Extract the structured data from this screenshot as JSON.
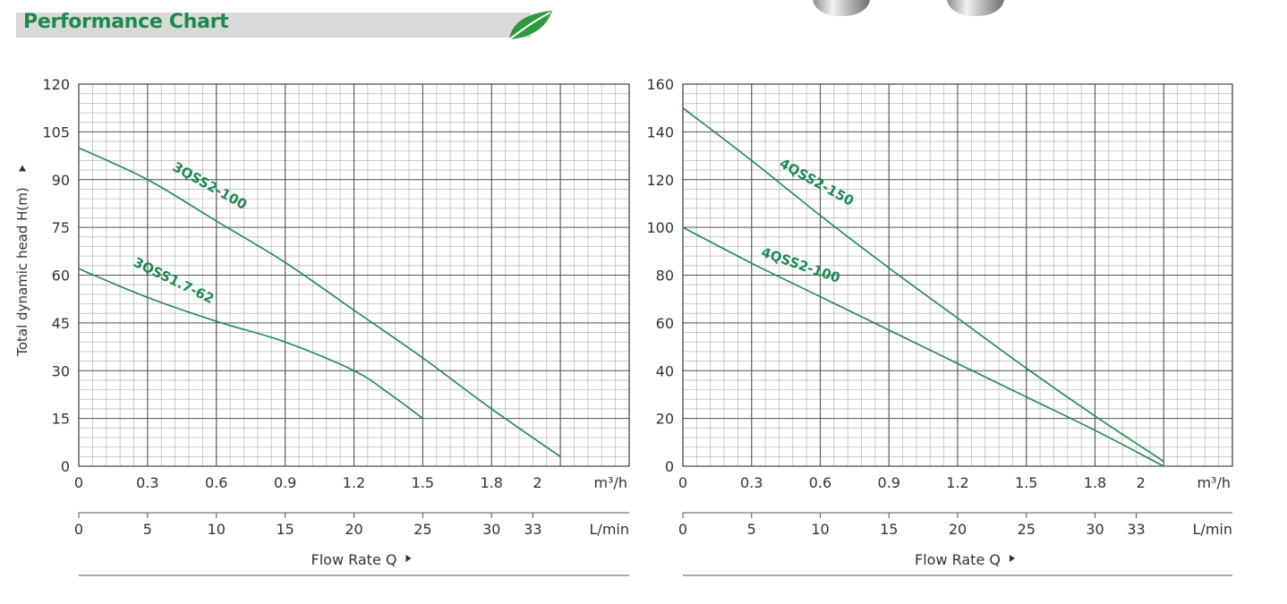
{
  "header": {
    "title": "Performance Chart"
  },
  "colors": {
    "accent": "#1c8a4a",
    "curve": "#1e8a52",
    "grid_major": "#555555",
    "grid_minor": "#bdbdbd",
    "header_bg": "#d9d9d9"
  },
  "icons": {
    "leaf": "leaf-icon",
    "product": "pump-image"
  },
  "shared": {
    "ylabel": "Total dynamic head H(m)",
    "xlabel": "Flow Rate Q",
    "unit_m3h": "m³/h",
    "unit_lmin": "L/min"
  },
  "chart_data": [
    {
      "type": "line",
      "ylabel": "Total dynamic head H(m)",
      "xlabel": "Flow Rate Q",
      "xlim": [
        0,
        2.4
      ],
      "ylim": [
        0,
        120
      ],
      "x_ticks": [
        0,
        0.3,
        0.6,
        0.9,
        1.2,
        1.5,
        1.8,
        2
      ],
      "x_tick_labels": [
        "0",
        "0.3",
        "0.6",
        "0.9",
        "1.2",
        "1.5",
        "1.8",
        "2"
      ],
      "y_ticks": [
        0,
        15,
        30,
        45,
        60,
        75,
        90,
        105,
        120
      ],
      "y_tick_labels": [
        "0",
        "15",
        "30",
        "45",
        "60",
        "75",
        "90",
        "105",
        "120"
      ],
      "x2_values": [
        0,
        5,
        10,
        15,
        20,
        25,
        30,
        33
      ],
      "x2_labels": [
        "0",
        "5",
        "10",
        "15",
        "20",
        "25",
        "30",
        "33"
      ],
      "grid": true,
      "series": [
        {
          "name": "3QSS2-100",
          "x": [
            0,
            0.3,
            0.6,
            0.9,
            1.2,
            1.5,
            1.8,
            2.1
          ],
          "y": [
            100,
            90,
            77,
            64,
            49,
            34,
            18,
            3
          ]
        },
        {
          "name": "3QSS1.7-62",
          "x": [
            0,
            0.3,
            0.6,
            0.9,
            1.2,
            1.35,
            1.5
          ],
          "y": [
            62,
            53,
            45.5,
            39,
            30,
            23,
            15
          ]
        }
      ]
    },
    {
      "type": "line",
      "ylabel": "",
      "xlabel": "Flow Rate Q",
      "xlim": [
        0,
        2.4
      ],
      "ylim": [
        0,
        160
      ],
      "x_ticks": [
        0,
        0.3,
        0.6,
        0.9,
        1.2,
        1.5,
        1.8,
        2
      ],
      "x_tick_labels": [
        "0",
        "0.3",
        "0.6",
        "0.9",
        "1.2",
        "1.5",
        "1.8",
        "2"
      ],
      "y_ticks": [
        0,
        20,
        40,
        60,
        80,
        100,
        120,
        140,
        160
      ],
      "y_tick_labels": [
        "0",
        "20",
        "40",
        "60",
        "80",
        "100",
        "120",
        "140",
        "160"
      ],
      "x2_values": [
        0,
        5,
        10,
        15,
        20,
        25,
        30,
        33
      ],
      "x2_labels": [
        "0",
        "5",
        "10",
        "15",
        "20",
        "25",
        "30",
        "33"
      ],
      "grid": true,
      "series": [
        {
          "name": "4QSS2-150",
          "x": [
            0,
            0.3,
            0.6,
            0.9,
            1.2,
            1.5,
            1.8,
            2.1
          ],
          "y": [
            150,
            128,
            105,
            83,
            62,
            41,
            21,
            2
          ]
        },
        {
          "name": "4QSS2-100",
          "x": [
            0,
            0.3,
            0.6,
            0.9,
            1.2,
            1.5,
            1.8,
            2.1
          ],
          "y": [
            100,
            85,
            71,
            57,
            43,
            29,
            15,
            0
          ]
        }
      ]
    }
  ]
}
